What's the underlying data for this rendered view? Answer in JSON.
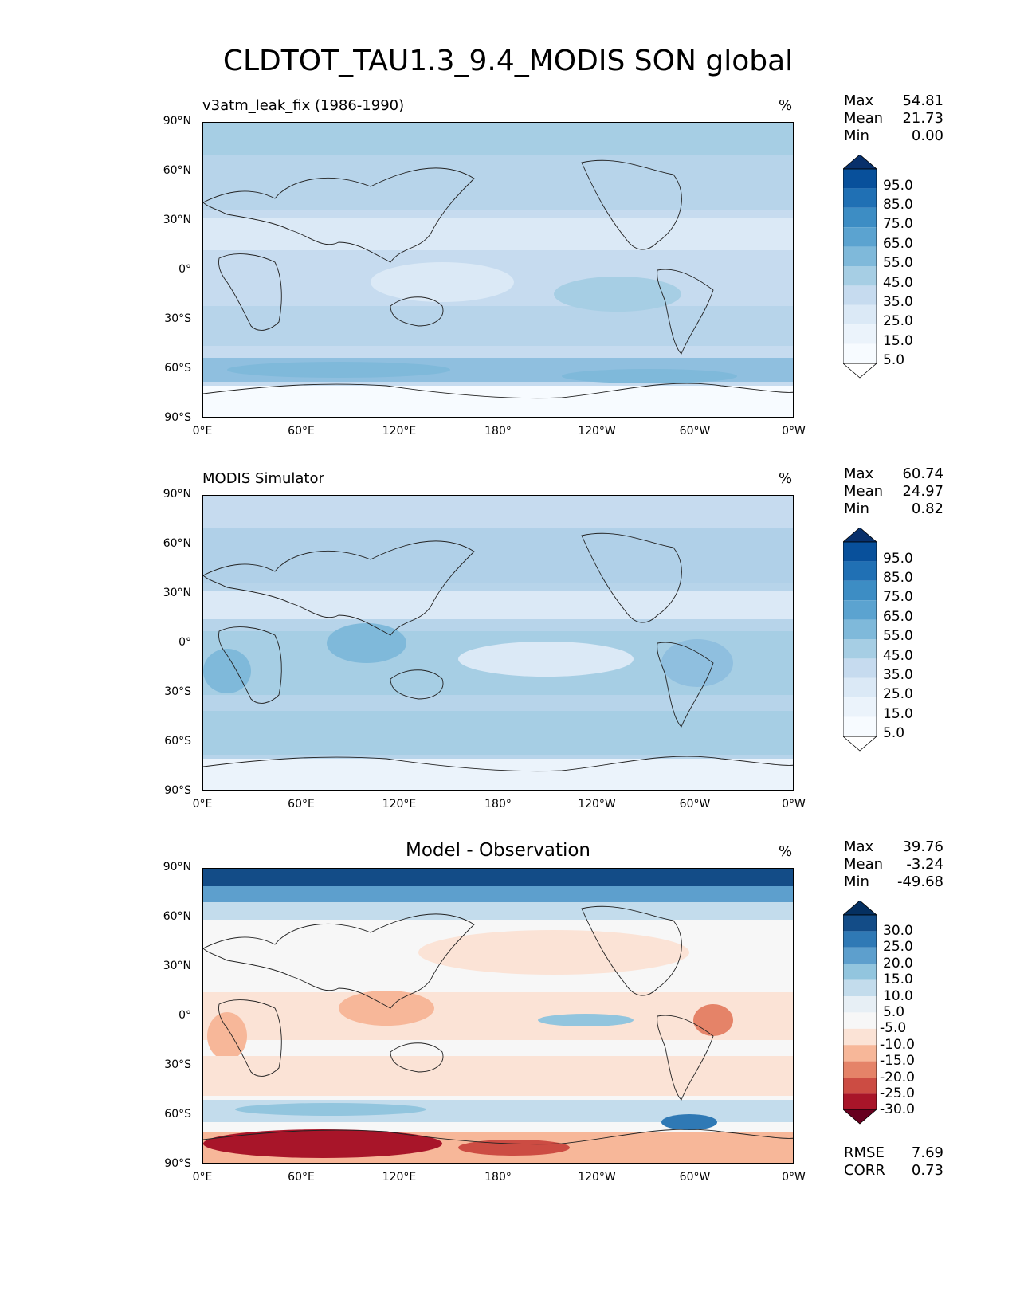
{
  "figure": {
    "title": "CLDTOT_TAU1.3_9.4_MODIS SON global"
  },
  "chart_data": [
    {
      "type": "heatmap",
      "panel": "test",
      "title": "v3atm_leak_fix (1986-1990)",
      "units": "%",
      "stats": [
        {
          "label": "Max",
          "value": "54.81"
        },
        {
          "label": "Mean",
          "value": "21.73"
        },
        {
          "label": "Min",
          "value": "0.00"
        }
      ],
      "xticks": [
        "0°E",
        "60°E",
        "120°E",
        "180°",
        "120°W",
        "60°W",
        "0°W"
      ],
      "yticks": [
        "90°N",
        "60°N",
        "30°N",
        "0°",
        "30°S",
        "60°S",
        "90°S"
      ],
      "colorbar": {
        "labels": [
          "95.0",
          "85.0",
          "75.0",
          "65.0",
          "55.0",
          "45.0",
          "35.0",
          "25.0",
          "15.0",
          "5.0"
        ],
        "colors": [
          "#08306b",
          "#08509b",
          "#2070b4",
          "#3d8dc4",
          "#5ba3d0",
          "#7fb9da",
          "#a6cee4",
          "#c6dbef",
          "#dbe9f6",
          "#ebf3fb",
          "#f7fbff"
        ],
        "extend": "both"
      }
    },
    {
      "type": "heatmap",
      "panel": "reference",
      "title": "MODIS Simulator",
      "units": "%",
      "stats": [
        {
          "label": "Max",
          "value": "60.74"
        },
        {
          "label": "Mean",
          "value": "24.97"
        },
        {
          "label": "Min",
          "value": "0.82"
        }
      ],
      "xticks": [
        "0°E",
        "60°E",
        "120°E",
        "180°",
        "120°W",
        "60°W",
        "0°W"
      ],
      "yticks": [
        "90°N",
        "60°N",
        "30°N",
        "0°",
        "30°S",
        "60°S",
        "90°S"
      ],
      "colorbar": {
        "labels": [
          "95.0",
          "85.0",
          "75.0",
          "65.0",
          "55.0",
          "45.0",
          "35.0",
          "25.0",
          "15.0",
          "5.0"
        ],
        "colors": [
          "#08306b",
          "#08509b",
          "#2070b4",
          "#3d8dc4",
          "#5ba3d0",
          "#7fb9da",
          "#a6cee4",
          "#c6dbef",
          "#dbe9f6",
          "#ebf3fb",
          "#f7fbff"
        ],
        "extend": "both"
      }
    },
    {
      "type": "heatmap",
      "panel": "difference",
      "title": "Model - Observation",
      "units": "%",
      "stats": [
        {
          "label": "Max",
          "value": "39.76"
        },
        {
          "label": "Mean",
          "value": "-3.24"
        },
        {
          "label": "Min",
          "value": "-49.68"
        }
      ],
      "metrics": [
        {
          "label": "RMSE",
          "value": "7.69"
        },
        {
          "label": "CORR",
          "value": "0.73"
        }
      ],
      "xticks": [
        "0°E",
        "60°E",
        "120°E",
        "180°",
        "120°W",
        "60°W",
        "0°W"
      ],
      "yticks": [
        "90°N",
        "60°N",
        "30°N",
        "0°",
        "30°S",
        "60°S",
        "90°S"
      ],
      "colorbar": {
        "labels": [
          "30.0",
          "25.0",
          "20.0",
          "15.0",
          "10.0",
          "5.0",
          "-5.0",
          "-10.0",
          "-15.0",
          "-20.0",
          "-25.0",
          "-30.0"
        ],
        "colors": [
          "#053061",
          "#134c87",
          "#2f79b5",
          "#5d9fcd",
          "#92c5de",
          "#c3dcec",
          "#e7eff5",
          "#f7f7f7",
          "#fbe3d6",
          "#f7b799",
          "#e58368",
          "#cc4c43",
          "#a81529",
          "#67001f"
        ],
        "extend": "both"
      }
    }
  ]
}
